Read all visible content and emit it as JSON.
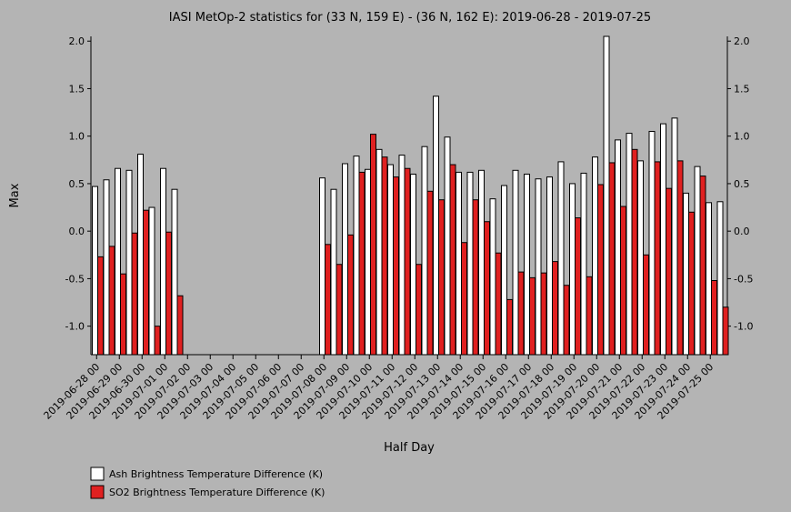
{
  "chart_data": {
    "type": "bar",
    "title": "IASI MetOp-2 statistics for (33 N, 159 E) - (36 N, 162 E): 2019-06-28 - 2019-07-25",
    "xlabel": "Half Day",
    "ylabel": "Max",
    "ylim": [
      -1.3,
      2.05
    ],
    "yticks": [
      "2.0",
      "1.5",
      "1.0",
      "0.5",
      "0.0",
      "-0.5",
      "-1.0"
    ],
    "ytick_values": [
      2.0,
      1.5,
      1.0,
      0.5,
      0.0,
      -0.5,
      -1.0
    ],
    "xtick_labels": [
      "2019-06-28 00",
      "2019-06-29 00",
      "2019-06-30 00",
      "2019-07-01 00",
      "2019-07-02 00",
      "2019-07-03 00",
      "2019-07-04 00",
      "2019-07-05 00",
      "2019-07-06 00",
      "2019-07-07 00",
      "2019-07-08 00",
      "2019-07-09 00",
      "2019-07-10 00",
      "2019-07-11 00",
      "2019-07-12 00",
      "2019-07-13 00",
      "2019-07-14 00",
      "2019-07-15 00",
      "2019-07-16 00",
      "2019-07-17 00",
      "2019-07-18 00",
      "2019-07-19 00",
      "2019-07-20 00",
      "2019-07-21 00",
      "2019-07-22 00",
      "2019-07-23 00",
      "2019-07-24 00",
      "2019-07-25 00"
    ],
    "legend_placement": "bottom-left",
    "grid": false,
    "series": [
      {
        "name": "Ash Brightness Temperature Difference (K)",
        "color": "#ffffff",
        "values": [
          0.47,
          0.54,
          0.66,
          0.64,
          0.81,
          0.25,
          0.66,
          0.44,
          null,
          null,
          null,
          null,
          null,
          null,
          null,
          null,
          null,
          null,
          null,
          null,
          0.56,
          0.44,
          0.71,
          0.79,
          0.65,
          0.86,
          0.7,
          0.8,
          0.6,
          0.89,
          1.42,
          0.99,
          0.62,
          0.62,
          0.64,
          0.34,
          0.48,
          0.64,
          0.6,
          0.55,
          0.57,
          0.73,
          0.5,
          0.61,
          0.78,
          2.05,
          0.96,
          1.03,
          0.74,
          1.05,
          1.13,
          1.19,
          0.4,
          0.68,
          0.3,
          0.31
        ]
      },
      {
        "name": "SO2 Brightness Temperature Difference (K)",
        "color": "#e02020",
        "values": [
          -0.27,
          -0.16,
          -0.45,
          -0.02,
          0.22,
          -1.0,
          -0.01,
          -0.68,
          null,
          null,
          null,
          null,
          null,
          null,
          null,
          null,
          null,
          null,
          null,
          null,
          -0.14,
          -0.35,
          -0.04,
          0.62,
          1.02,
          0.78,
          0.57,
          0.66,
          -0.35,
          0.42,
          0.33,
          0.7,
          -0.12,
          0.33,
          0.1,
          -0.23,
          -0.72,
          -0.43,
          -0.49,
          -0.44,
          -0.32,
          -0.57,
          0.14,
          -0.48,
          0.49,
          0.72,
          0.26,
          0.86,
          -0.25,
          0.73,
          0.45,
          0.74,
          0.2,
          0.58,
          -0.52,
          -0.8
        ]
      }
    ]
  }
}
